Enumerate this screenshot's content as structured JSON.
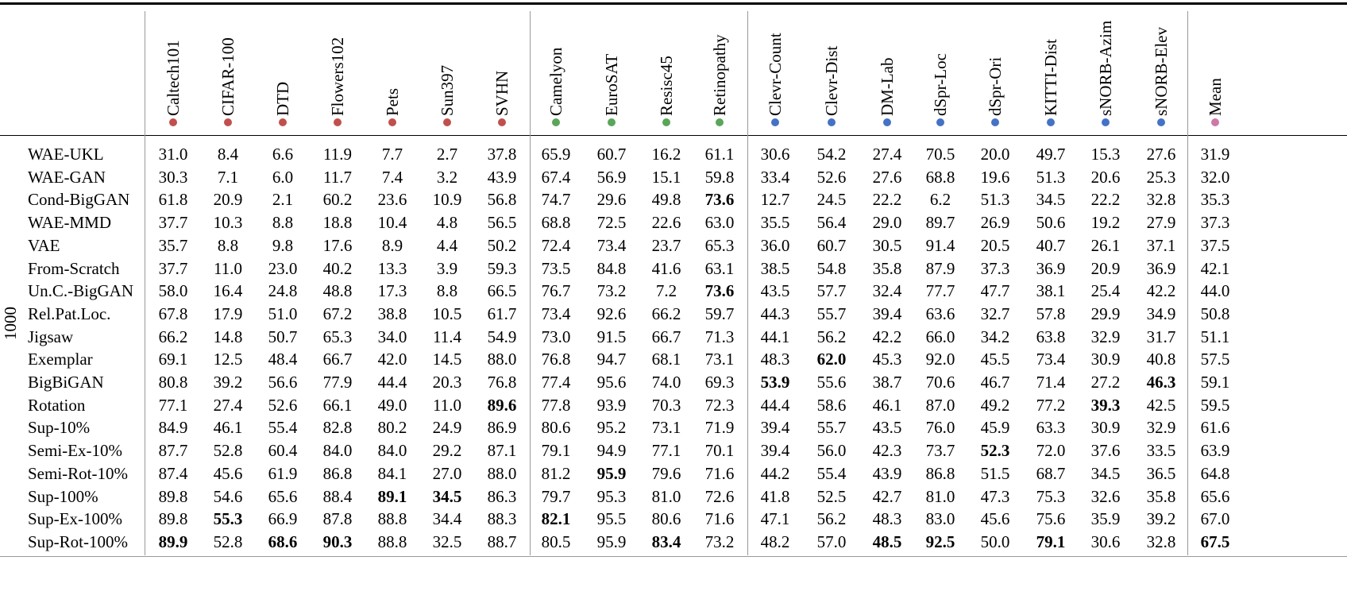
{
  "table": {
    "group_label": "1000",
    "columns": [
      {
        "label": "Caltech101",
        "group": "natural"
      },
      {
        "label": "CIFAR-100",
        "group": "natural"
      },
      {
        "label": "DTD",
        "group": "natural"
      },
      {
        "label": "Flowers102",
        "group": "natural"
      },
      {
        "label": "Pets",
        "group": "natural"
      },
      {
        "label": "Sun397",
        "group": "natural"
      },
      {
        "label": "SVHN",
        "group": "natural"
      },
      {
        "label": "Camelyon",
        "group": "specialized"
      },
      {
        "label": "EuroSAT",
        "group": "specialized"
      },
      {
        "label": "Resisc45",
        "group": "specialized"
      },
      {
        "label": "Retinopathy",
        "group": "specialized"
      },
      {
        "label": "Clevr-Count",
        "group": "structured"
      },
      {
        "label": "Clevr-Dist",
        "group": "structured"
      },
      {
        "label": "DM-Lab",
        "group": "structured"
      },
      {
        "label": "dSpr-Loc",
        "group": "structured"
      },
      {
        "label": "dSpr-Ori",
        "group": "structured"
      },
      {
        "label": "KITTI-Dist",
        "group": "structured"
      },
      {
        "label": "sNORB-Azim",
        "group": "structured"
      },
      {
        "label": "sNORB-Elev",
        "group": "structured"
      },
      {
        "label": "Mean",
        "group": "mean"
      }
    ],
    "group_colors": {
      "natural": "#c0504d",
      "specialized": "#5aa55a",
      "structured": "#4472c4",
      "mean": "#cc79a7"
    },
    "rows": [
      {
        "label": "WAE-UKL",
        "values": [
          "31.0",
          "8.4",
          "6.6",
          "11.9",
          "7.7",
          "2.7",
          "37.8",
          "65.9",
          "60.7",
          "16.2",
          "61.1",
          "30.6",
          "54.2",
          "27.4",
          "70.5",
          "20.0",
          "49.7",
          "15.3",
          "27.6",
          "31.9"
        ],
        "bold": []
      },
      {
        "label": "WAE-GAN",
        "values": [
          "30.3",
          "7.1",
          "6.0",
          "11.7",
          "7.4",
          "3.2",
          "43.9",
          "67.4",
          "56.9",
          "15.1",
          "59.8",
          "33.4",
          "52.6",
          "27.6",
          "68.8",
          "19.6",
          "51.3",
          "20.6",
          "25.3",
          "32.0"
        ],
        "bold": []
      },
      {
        "label": "Cond-BigGAN",
        "values": [
          "61.8",
          "20.9",
          "2.1",
          "60.2",
          "23.6",
          "10.9",
          "56.8",
          "74.7",
          "29.6",
          "49.8",
          "73.6",
          "12.7",
          "24.5",
          "22.2",
          "6.2",
          "51.3",
          "34.5",
          "22.2",
          "32.8",
          "35.3"
        ],
        "bold": [
          10
        ]
      },
      {
        "label": "WAE-MMD",
        "values": [
          "37.7",
          "10.3",
          "8.8",
          "18.8",
          "10.4",
          "4.8",
          "56.5",
          "68.8",
          "72.5",
          "22.6",
          "63.0",
          "35.5",
          "56.4",
          "29.0",
          "89.7",
          "26.9",
          "50.6",
          "19.2",
          "27.9",
          "37.3"
        ],
        "bold": []
      },
      {
        "label": "VAE",
        "values": [
          "35.7",
          "8.8",
          "9.8",
          "17.6",
          "8.9",
          "4.4",
          "50.2",
          "72.4",
          "73.4",
          "23.7",
          "65.3",
          "36.0",
          "60.7",
          "30.5",
          "91.4",
          "20.5",
          "40.7",
          "26.1",
          "37.1",
          "37.5"
        ],
        "bold": []
      },
      {
        "label": "From-Scratch",
        "values": [
          "37.7",
          "11.0",
          "23.0",
          "40.2",
          "13.3",
          "3.9",
          "59.3",
          "73.5",
          "84.8",
          "41.6",
          "63.1",
          "38.5",
          "54.8",
          "35.8",
          "87.9",
          "37.3",
          "36.9",
          "20.9",
          "36.9",
          "42.1"
        ],
        "bold": []
      },
      {
        "label": "Un.C.-BigGAN",
        "values": [
          "58.0",
          "16.4",
          "24.8",
          "48.8",
          "17.3",
          "8.8",
          "66.5",
          "76.7",
          "73.2",
          "7.2",
          "73.6",
          "43.5",
          "57.7",
          "32.4",
          "77.7",
          "47.7",
          "38.1",
          "25.4",
          "42.2",
          "44.0"
        ],
        "bold": [
          10
        ]
      },
      {
        "label": "Rel.Pat.Loc.",
        "values": [
          "67.8",
          "17.9",
          "51.0",
          "67.2",
          "38.8",
          "10.5",
          "61.7",
          "73.4",
          "92.6",
          "66.2",
          "59.7",
          "44.3",
          "55.7",
          "39.4",
          "63.6",
          "32.7",
          "57.8",
          "29.9",
          "34.9",
          "50.8"
        ],
        "bold": []
      },
      {
        "label": "Jigsaw",
        "values": [
          "66.2",
          "14.8",
          "50.7",
          "65.3",
          "34.0",
          "11.4",
          "54.9",
          "73.0",
          "91.5",
          "66.7",
          "71.3",
          "44.1",
          "56.2",
          "42.2",
          "66.0",
          "34.2",
          "63.8",
          "32.9",
          "31.7",
          "51.1"
        ],
        "bold": []
      },
      {
        "label": "Exemplar",
        "values": [
          "69.1",
          "12.5",
          "48.4",
          "66.7",
          "42.0",
          "14.5",
          "88.0",
          "76.8",
          "94.7",
          "68.1",
          "73.1",
          "48.3",
          "62.0",
          "45.3",
          "92.0",
          "45.5",
          "73.4",
          "30.9",
          "40.8",
          "57.5"
        ],
        "bold": [
          12
        ]
      },
      {
        "label": "BigBiGAN",
        "values": [
          "80.8",
          "39.2",
          "56.6",
          "77.9",
          "44.4",
          "20.3",
          "76.8",
          "77.4",
          "95.6",
          "74.0",
          "69.3",
          "53.9",
          "55.6",
          "38.7",
          "70.6",
          "46.7",
          "71.4",
          "27.2",
          "46.3",
          "59.1"
        ],
        "bold": [
          11,
          18
        ]
      },
      {
        "label": "Rotation",
        "values": [
          "77.1",
          "27.4",
          "52.6",
          "66.1",
          "49.0",
          "11.0",
          "89.6",
          "77.8",
          "93.9",
          "70.3",
          "72.3",
          "44.4",
          "58.6",
          "46.1",
          "87.0",
          "49.2",
          "77.2",
          "39.3",
          "42.5",
          "59.5"
        ],
        "bold": [
          6,
          17
        ]
      },
      {
        "label": "Sup-10%",
        "values": [
          "84.9",
          "46.1",
          "55.4",
          "82.8",
          "80.2",
          "24.9",
          "86.9",
          "80.6",
          "95.2",
          "73.1",
          "71.9",
          "39.4",
          "55.7",
          "43.5",
          "76.0",
          "45.9",
          "63.3",
          "30.9",
          "32.9",
          "61.6"
        ],
        "bold": []
      },
      {
        "label": "Semi-Ex-10%",
        "values": [
          "87.7",
          "52.8",
          "60.4",
          "84.0",
          "84.0",
          "29.2",
          "87.1",
          "79.1",
          "94.9",
          "77.1",
          "70.1",
          "39.4",
          "56.0",
          "42.3",
          "73.7",
          "52.3",
          "72.0",
          "37.6",
          "33.5",
          "63.9"
        ],
        "bold": [
          15
        ]
      },
      {
        "label": "Semi-Rot-10%",
        "values": [
          "87.4",
          "45.6",
          "61.9",
          "86.8",
          "84.1",
          "27.0",
          "88.0",
          "81.2",
          "95.9",
          "79.6",
          "71.6",
          "44.2",
          "55.4",
          "43.9",
          "86.8",
          "51.5",
          "68.7",
          "34.5",
          "36.5",
          "64.8"
        ],
        "bold": [
          8
        ]
      },
      {
        "label": "Sup-100%",
        "values": [
          "89.8",
          "54.6",
          "65.6",
          "88.4",
          "89.1",
          "34.5",
          "86.3",
          "79.7",
          "95.3",
          "81.0",
          "72.6",
          "41.8",
          "52.5",
          "42.7",
          "81.0",
          "47.3",
          "75.3",
          "32.6",
          "35.8",
          "65.6"
        ],
        "bold": [
          4,
          5
        ]
      },
      {
        "label": "Sup-Ex-100%",
        "values": [
          "89.8",
          "55.3",
          "66.9",
          "87.8",
          "88.8",
          "34.4",
          "88.3",
          "82.1",
          "95.5",
          "80.6",
          "71.6",
          "47.1",
          "56.2",
          "48.3",
          "83.0",
          "45.6",
          "75.6",
          "35.9",
          "39.2",
          "67.0"
        ],
        "bold": [
          1,
          7
        ]
      },
      {
        "label": "Sup-Rot-100%",
        "values": [
          "89.9",
          "52.8",
          "68.6",
          "90.3",
          "88.8",
          "32.5",
          "88.7",
          "80.5",
          "95.9",
          "83.4",
          "73.2",
          "48.2",
          "57.0",
          "48.5",
          "92.5",
          "50.0",
          "79.1",
          "30.6",
          "32.8",
          "67.5"
        ],
        "bold": [
          0,
          2,
          3,
          9,
          13,
          14,
          16,
          19
        ]
      }
    ]
  }
}
